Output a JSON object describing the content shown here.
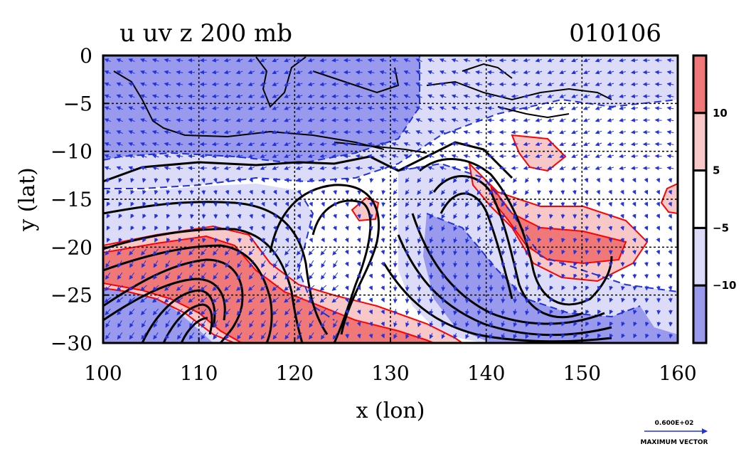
{
  "chart_data": {
    "type": "heatmap",
    "title": "u uv z 200 mb",
    "date_label": "010106",
    "xlabel": "x (lon)",
    "ylabel": "y (lat)",
    "xlim": [
      100,
      160
    ],
    "ylim": [
      -30,
      0
    ],
    "x_ticks": [
      100,
      110,
      120,
      130,
      140,
      150,
      160
    ],
    "y_ticks": [
      0,
      -5,
      -10,
      -15,
      -20,
      -25,
      -30
    ],
    "x_tick_labels": [
      "100",
      "110",
      "120",
      "130",
      "140",
      "150",
      "160"
    ],
    "y_tick_labels": [
      "0",
      "−5",
      "−10",
      "−15",
      "−20",
      "−25",
      "−30"
    ],
    "grid": true,
    "colorbar": {
      "placement": "right",
      "levels": [
        -10,
        -5,
        5,
        10
      ],
      "level_labels": [
        "−10",
        "−5",
        "5",
        "10"
      ],
      "colors": [
        "#9999ee",
        "#dcdcf8",
        "#ffffff",
        "#f8c8c8",
        "#f07878"
      ]
    },
    "vector_key": {
      "value_label": "0.600E+02",
      "caption": "MAXIMUM VECTOR"
    }
  }
}
